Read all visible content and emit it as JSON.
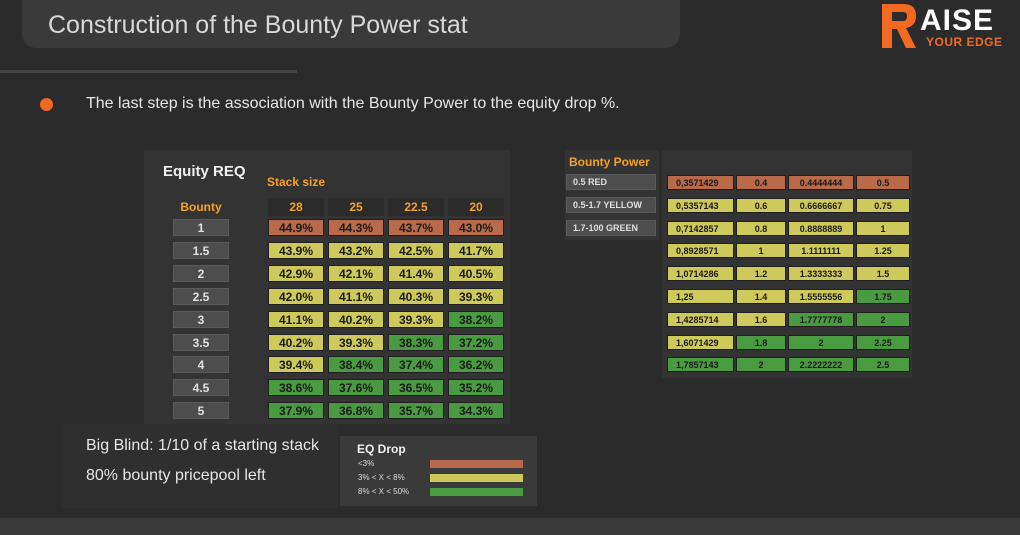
{
  "slide": {
    "title": "Construction of the Bounty Power stat",
    "bullet": "The last step is the association with the Bounty Power to the equity drop %.",
    "logo_top": "AISE",
    "logo_bottom": "YOUR EDGE"
  },
  "colors": {
    "red": "#b86a4a",
    "yellow": "#cdc95a",
    "green": "#4a9a42",
    "accent": "#f26a21"
  },
  "equity_table": {
    "title": "Equity REQ",
    "stack_label": "Stack size",
    "bounty_header": "Bounty",
    "columns": [
      "28",
      "25",
      "22.5",
      "20"
    ],
    "rows": [
      {
        "bounty": "1",
        "values": [
          "44.9%",
          "44.3%",
          "43.7%",
          "43.0%"
        ],
        "colors": [
          "red",
          "red",
          "red",
          "red"
        ]
      },
      {
        "bounty": "1.5",
        "values": [
          "43.9%",
          "43.2%",
          "42.5%",
          "41.7%"
        ],
        "colors": [
          "yellow",
          "yellow",
          "yellow",
          "yellow"
        ]
      },
      {
        "bounty": "2",
        "values": [
          "42.9%",
          "42.1%",
          "41.4%",
          "40.5%"
        ],
        "colors": [
          "yellow",
          "yellow",
          "yellow",
          "yellow"
        ]
      },
      {
        "bounty": "2.5",
        "values": [
          "42.0%",
          "41.1%",
          "40.3%",
          "39.3%"
        ],
        "colors": [
          "yellow",
          "yellow",
          "yellow",
          "yellow"
        ]
      },
      {
        "bounty": "3",
        "values": [
          "41.1%",
          "40.2%",
          "39.3%",
          "38.2%"
        ],
        "colors": [
          "yellow",
          "yellow",
          "yellow",
          "green"
        ]
      },
      {
        "bounty": "3.5",
        "values": [
          "40.2%",
          "39.3%",
          "38.3%",
          "37.2%"
        ],
        "colors": [
          "yellow",
          "yellow",
          "green",
          "green"
        ]
      },
      {
        "bounty": "4",
        "values": [
          "39.4%",
          "38.4%",
          "37.4%",
          "36.2%"
        ],
        "colors": [
          "yellow",
          "green",
          "green",
          "green"
        ]
      },
      {
        "bounty": "4.5",
        "values": [
          "38.6%",
          "37.6%",
          "36.5%",
          "35.2%"
        ],
        "colors": [
          "green",
          "green",
          "green",
          "green"
        ]
      },
      {
        "bounty": "5",
        "values": [
          "37.9%",
          "36.8%",
          "35.7%",
          "34.3%"
        ],
        "colors": [
          "green",
          "green",
          "green",
          "green"
        ]
      }
    ]
  },
  "bounty_power": {
    "title": "Bounty Power",
    "legend": [
      {
        "label": "0.5 RED"
      },
      {
        "label": "0.5-1.7 YELLOW"
      },
      {
        "label": "1.7-100 GREEN"
      }
    ],
    "rows": [
      {
        "values": [
          "0,3571429",
          "0.4",
          "0.4444444",
          "0.5"
        ],
        "colors": [
          "red",
          "red",
          "red",
          "red"
        ]
      },
      {
        "values": [
          "0,5357143",
          "0.6",
          "0.6666667",
          "0.75"
        ],
        "colors": [
          "yellow",
          "yellow",
          "yellow",
          "yellow"
        ]
      },
      {
        "values": [
          "0,7142857",
          "0.8",
          "0.8888889",
          "1"
        ],
        "colors": [
          "yellow",
          "yellow",
          "yellow",
          "yellow"
        ]
      },
      {
        "values": [
          "0,8928571",
          "1",
          "1.1111111",
          "1.25"
        ],
        "colors": [
          "yellow",
          "yellow",
          "yellow",
          "yellow"
        ]
      },
      {
        "values": [
          "1,0714286",
          "1.2",
          "1.3333333",
          "1.5"
        ],
        "colors": [
          "yellow",
          "yellow",
          "yellow",
          "yellow"
        ]
      },
      {
        "values": [
          "1,25",
          "1.4",
          "1.5555556",
          "1.75"
        ],
        "colors": [
          "yellow",
          "yellow",
          "yellow",
          "green"
        ]
      },
      {
        "values": [
          "1,4285714",
          "1.6",
          "1.7777778",
          "2"
        ],
        "colors": [
          "yellow",
          "yellow",
          "green",
          "green"
        ]
      },
      {
        "values": [
          "1,6071429",
          "1.8",
          "2",
          "2.25"
        ],
        "colors": [
          "yellow",
          "green",
          "green",
          "green"
        ]
      },
      {
        "values": [
          "1,7857143",
          "2",
          "2.2222222",
          "2.5"
        ],
        "colors": [
          "green",
          "green",
          "green",
          "green"
        ]
      }
    ]
  },
  "info": {
    "line1": "Big Blind: 1/10 of a starting stack",
    "line2": "80% bounty pricepool left"
  },
  "eq_drop": {
    "title": "EQ Drop",
    "items": [
      {
        "label": "<3%",
        "color": "red"
      },
      {
        "label": "3% < X < 8%",
        "color": "yellow"
      },
      {
        "label": "8% < X < 50%",
        "color": "green"
      }
    ]
  }
}
